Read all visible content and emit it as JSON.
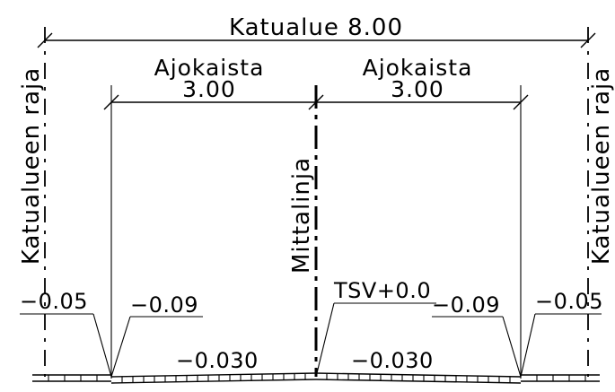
{
  "drawing": {
    "total_dimension": "Katualue 8.00",
    "lane_left": {
      "name": "Ajokaista",
      "width": "3.00"
    },
    "lane_right": {
      "name": "Ajokaista",
      "width": "3.00"
    },
    "boundary_left_label": "Katualueen raja",
    "boundary_right_label": "Katualueen raja",
    "centerline_label": "Mittalinja",
    "levels": {
      "outer_left": "−0.05",
      "edge_left": "−0.09",
      "center": "TSV+0.0",
      "edge_right": "−0.09",
      "outer_right": "−0.05"
    },
    "slopes": {
      "left": "−0.030",
      "right": "−0.030"
    }
  }
}
